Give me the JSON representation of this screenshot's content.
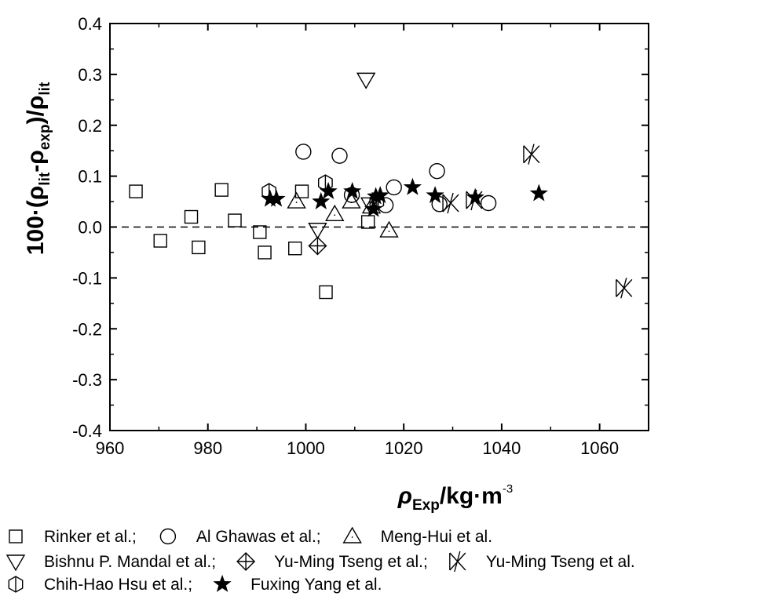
{
  "chart_data": {
    "type": "scatter",
    "xlim": [
      960,
      1070
    ],
    "ylim": [
      -0.4,
      0.4
    ],
    "xticks": [
      "960",
      "980",
      "1000",
      "1020",
      "1040",
      "1060"
    ],
    "yticks": [
      "-0.4",
      "-0.3",
      "-0.2",
      "-0.1",
      "0.0",
      "0.1",
      "0.2",
      "0.3",
      "0.4"
    ],
    "xlabel": {
      "symbol": "ρ",
      "sub": "Exp",
      "main": "/kg·m",
      "sup": "-3"
    },
    "ylabel": {
      "p1": "100·(ρ",
      "s1": "lit",
      "p2": "-ρ",
      "s2": "exp",
      "p3": ")/ρ",
      "s3": "lit"
    },
    "reference_line_y": 0,
    "grid": false,
    "legend_position": "bottom",
    "series": [
      {
        "name": "Rinker et al.",
        "marker": "square",
        "points": [
          [
            965.3,
            0.07
          ],
          [
            970.3,
            -0.027
          ],
          [
            976.6,
            0.02
          ],
          [
            978.1,
            -0.04
          ],
          [
            982.8,
            0.073
          ],
          [
            985.5,
            0.013
          ],
          [
            990.6,
            -0.01
          ],
          [
            991.6,
            -0.05
          ],
          [
            997.8,
            -0.042
          ],
          [
            999.2,
            0.07
          ],
          [
            1004.1,
            -0.128
          ],
          [
            1012.7,
            0.01
          ]
        ]
      },
      {
        "name": "Al Ghawas et al.",
        "marker": "circle",
        "points": [
          [
            999.5,
            0.148
          ],
          [
            1006.9,
            0.14
          ],
          [
            1009.4,
            0.063
          ],
          [
            1016.3,
            0.043
          ],
          [
            1018.0,
            0.078
          ],
          [
            1026.8,
            0.11
          ],
          [
            1027.3,
            0.045
          ],
          [
            1037.3,
            0.047
          ]
        ]
      },
      {
        "name": "Meng-Hui et al.",
        "marker": "triangle-up",
        "points": [
          [
            998.1,
            0.05
          ],
          [
            1005.9,
            0.025
          ],
          [
            1009.3,
            0.05
          ],
          [
            1013.4,
            0.04
          ],
          [
            1017.0,
            -0.007
          ]
        ]
      },
      {
        "name": "Bishnu P. Mandal et al.",
        "marker": "triangle-down",
        "points": [
          [
            1012.3,
            0.29
          ],
          [
            1002.4,
            -0.005
          ],
          [
            1013.1,
            0.045
          ]
        ]
      },
      {
        "name": "Yu-Ming Tseng et al.",
        "marker": "crossed-diamond",
        "points": [
          [
            1002.4,
            -0.037
          ]
        ]
      },
      {
        "name": "Yu-Ming Tseng et al.",
        "marker": "crossed-bowtie",
        "points": [
          [
            1046.1,
            0.143
          ],
          [
            1029.6,
            0.047
          ],
          [
            1034.4,
            0.053
          ],
          [
            1065.0,
            -0.12
          ]
        ]
      },
      {
        "name": "Chih-Hao Hsu et al.",
        "marker": "hexagon",
        "points": [
          [
            992.5,
            0.07
          ],
          [
            1004.0,
            0.087
          ],
          [
            1014.5,
            0.05
          ]
        ]
      },
      {
        "name": "Fuxing Yang et al.",
        "marker": "star",
        "points": [
          [
            992.7,
            0.055
          ],
          [
            994.0,
            0.055
          ],
          [
            1003.1,
            0.05
          ],
          [
            1004.6,
            0.07
          ],
          [
            1009.5,
            0.07
          ],
          [
            1013.8,
            0.035
          ],
          [
            1014.3,
            0.06
          ],
          [
            1015.2,
            0.062
          ],
          [
            1021.8,
            0.078
          ],
          [
            1026.4,
            0.062
          ],
          [
            1034.6,
            0.058
          ],
          [
            1047.6,
            0.066
          ]
        ]
      }
    ],
    "legend_rows": [
      [
        {
          "marker": "square",
          "label": "Rinker et al.;"
        },
        {
          "marker": "circle",
          "label": "Al Ghawas et al.;"
        },
        {
          "marker": "triangle-up",
          "label": "Meng-Hui et al."
        }
      ],
      [
        {
          "marker": "triangle-down",
          "label": "Bishnu P. Mandal et al.;"
        },
        {
          "marker": "crossed-diamond",
          "label": "Yu-Ming Tseng et al.;"
        },
        {
          "marker": "crossed-bowtie",
          "label": "Yu-Ming Tseng et al."
        }
      ],
      [
        {
          "marker": "hexagon",
          "label": "Chih-Hao Hsu et al.;"
        },
        {
          "marker": "star",
          "label": "Fuxing Yang et al."
        }
      ]
    ]
  }
}
